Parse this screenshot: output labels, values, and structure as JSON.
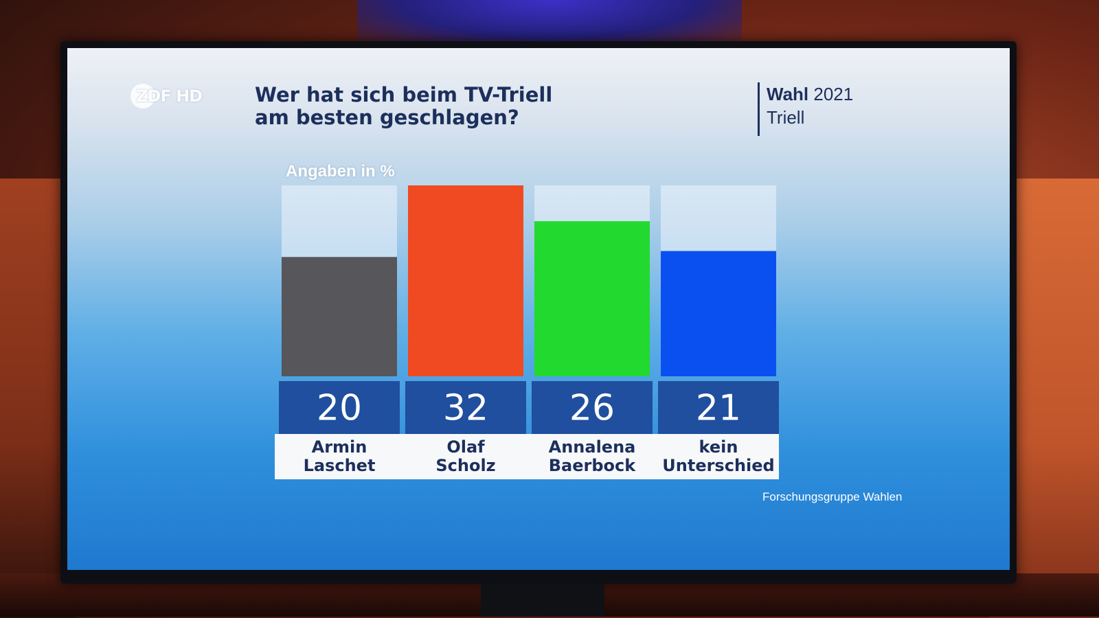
{
  "broadcast": {
    "logo_text": "ZDF HD",
    "headline_line1": "Wer hat sich beim TV-Triell",
    "headline_line2": "am besten geschlagen?",
    "tag_bold": "Wahl",
    "tag_year": "2021",
    "tag_sub": "Triell",
    "source": "Forschungsgruppe Wahlen"
  },
  "chart_data": {
    "type": "bar",
    "unit_label": "Angaben in %",
    "categories": [
      [
        "Armin",
        "Laschet"
      ],
      [
        "Olaf",
        "Scholz"
      ],
      [
        "Annalena",
        "Baerbock"
      ],
      [
        "kein",
        "Unterschied"
      ]
    ],
    "values": [
      20,
      32,
      26,
      21
    ],
    "colors": [
      "#56565b",
      "#f04a22",
      "#22d92f",
      "#0a50f0"
    ],
    "ylim": [
      0,
      32
    ],
    "grid": false,
    "legend": "none"
  },
  "colors": {
    "value_box": "#1f4f9e",
    "label_panel": "#f7f8fa",
    "label_text": "#1c2f5c",
    "track": "#eef4fb"
  }
}
